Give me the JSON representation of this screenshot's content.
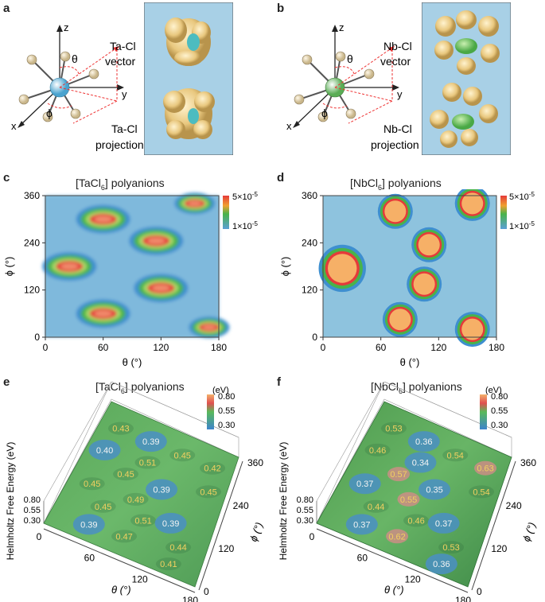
{
  "panels": {
    "a": {
      "label": "a",
      "axes": {
        "z": "z",
        "y": "y",
        "x": "x"
      },
      "theta": "θ",
      "phi": "ϕ",
      "vector_line1": "Ta-Cl",
      "vector_line2": "vector",
      "projection_line1": "Ta-Cl",
      "projection_line2": "projection",
      "center_color": "#7ec8e3"
    },
    "b": {
      "label": "b",
      "axes": {
        "z": "z",
        "y": "y",
        "x": "x"
      },
      "theta": "θ",
      "phi": "ϕ",
      "vector_line1": "Nb-Cl",
      "vector_line2": "vector",
      "projection_line1": "Nb-Cl",
      "projection_line2": "projection",
      "center_color": "#7fc47a"
    },
    "c": {
      "label": "c",
      "title": "[TaCl",
      "title_sub": "6",
      "title_tail": "] polyanions",
      "xlabel": "θ (°)",
      "ylabel": "ϕ (°)",
      "xticks": [
        "0",
        "60",
        "120",
        "180"
      ],
      "yticks": [
        "0",
        "120",
        "240",
        "360"
      ],
      "cbar_max": "5×10",
      "cbar_max_exp": "-5",
      "cbar_min": "1×10",
      "cbar_min_exp": "-5"
    },
    "d": {
      "label": "d",
      "title": "[NbCl",
      "title_sub": "6",
      "title_tail": "] polyanions",
      "xlabel": "θ (°)",
      "ylabel": "ϕ (°)",
      "xticks": [
        "0",
        "60",
        "120",
        "180"
      ],
      "yticks": [
        "0",
        "120",
        "240",
        "360"
      ],
      "cbar_max": "5×10",
      "cbar_max_exp": "-5",
      "cbar_min": "1×10",
      "cbar_min_exp": "-5"
    },
    "e": {
      "label": "e",
      "title": "[TaCl",
      "title_sub": "6",
      "title_tail": "] polyanions",
      "cbar_unit": "(eV)",
      "cbar_ticks": [
        "0.80",
        "0.55",
        "0.30"
      ],
      "zlabel": "Helmholtz Free Energy (eV)",
      "zticks": [
        "0.80",
        "0.55",
        "0.30"
      ],
      "xlabel": "θ (°)",
      "xticks": [
        "0",
        "60",
        "120",
        "180"
      ],
      "ylabel": "ϕ (°)",
      "yticks": [
        "0",
        "120",
        "240",
        "360"
      ],
      "values": [
        "0.43",
        "0.39",
        "0.45",
        "0.42",
        "0.40",
        "0.51",
        "0.45",
        "0.45",
        "0.39",
        "0.45",
        "0.49",
        "0.45",
        "0.51",
        "0.39",
        "0.44",
        "0.39",
        "0.47",
        "0.41"
      ]
    },
    "f": {
      "label": "f",
      "title": "[NbCl",
      "title_sub": "6",
      "title_tail": "] polyanions",
      "cbar_unit": "(eV)",
      "cbar_ticks": [
        "0.80",
        "0.55",
        "0.30"
      ],
      "zlabel": "Helmholtz Free Energy (eV)",
      "zticks": [
        "0.80",
        "0.55",
        "0.30"
      ],
      "xlabel": "θ (°)",
      "xticks": [
        "0",
        "60",
        "120",
        "180"
      ],
      "ylabel": "ϕ (°)",
      "yticks": [
        "0",
        "120",
        "240",
        "360"
      ],
      "values": [
        "0.53",
        "0.36",
        "0.54",
        "0.63",
        "0.46",
        "0.34",
        "0.54",
        "0.57",
        "0.35",
        "0.37",
        "0.55",
        "0.44",
        "0.46",
        "0.37",
        "0.53",
        "0.37",
        "0.62",
        "0.36"
      ]
    }
  },
  "chart_data": [
    {
      "type": "heatmap",
      "panel": "c",
      "title": "[TaCl6] polyanions",
      "xlabel": "θ (°)",
      "ylabel": "ϕ (°)",
      "xlim": [
        0,
        180
      ],
      "ylim": [
        0,
        360
      ],
      "colorbar": {
        "min": "1×10-5",
        "max": "5×10-5"
      },
      "hotspots": [
        {
          "theta": 60,
          "phi": 300,
          "level": "high"
        },
        {
          "theta": 155,
          "phi": 340,
          "level": "medium"
        },
        {
          "theta": 115,
          "phi": 245,
          "level": "high"
        },
        {
          "theta": 25,
          "phi": 180,
          "level": "high"
        },
        {
          "theta": 120,
          "phi": 125,
          "level": "high"
        },
        {
          "theta": 60,
          "phi": 60,
          "level": "high"
        },
        {
          "theta": 170,
          "phi": 25,
          "level": "medium"
        }
      ]
    },
    {
      "type": "heatmap",
      "panel": "d",
      "title": "[NbCl6] polyanions",
      "xlabel": "θ (°)",
      "ylabel": "ϕ (°)",
      "xlim": [
        0,
        180
      ],
      "ylim": [
        0,
        360
      ],
      "colorbar": {
        "min": "1×10-5",
        "max": "5×10-5"
      },
      "hotspots": [
        {
          "theta": 75,
          "phi": 320,
          "level": "max"
        },
        {
          "theta": 155,
          "phi": 340,
          "level": "max"
        },
        {
          "theta": 110,
          "phi": 235,
          "level": "max"
        },
        {
          "theta": 20,
          "phi": 175,
          "level": "max"
        },
        {
          "theta": 105,
          "phi": 135,
          "level": "max"
        },
        {
          "theta": 80,
          "phi": 45,
          "level": "max"
        },
        {
          "theta": 155,
          "phi": 20,
          "level": "max"
        }
      ]
    }
  ],
  "colors": {
    "heat_bg": "#8ec3de",
    "heat_blue": "#3e8fd0",
    "heat_green": "#49b34a",
    "heat_red": "#e53a3a",
    "heat_orange": "#f6b067",
    "panel_bg": "#a8d0e6",
    "gold": "#f1d595"
  }
}
